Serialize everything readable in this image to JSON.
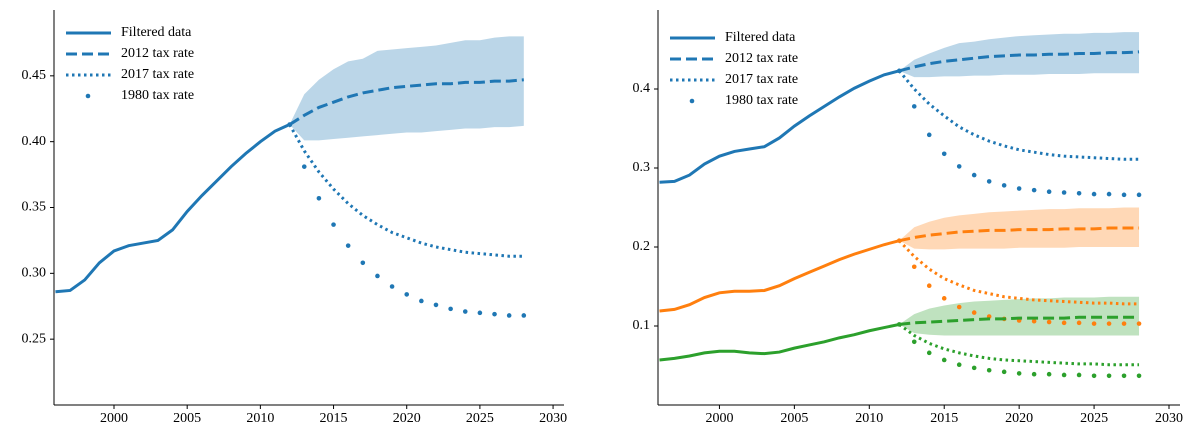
{
  "chart_data": [
    {
      "type": "line",
      "legend": "upper left",
      "x": [
        1996,
        1997,
        1998,
        1999,
        2000,
        2001,
        2002,
        2003,
        2004,
        2005,
        2006,
        2007,
        2008,
        2009,
        2010,
        2011,
        2012,
        2013,
        2014,
        2015,
        2016,
        2017,
        2018,
        2019,
        2020,
        2021,
        2022,
        2023,
        2024,
        2025,
        2026,
        2027,
        2028
      ],
      "xlim": [
        1995.9,
        2030.2
      ],
      "xticks": [
        2000,
        2005,
        2010,
        2015,
        2020,
        2025,
        2030
      ],
      "ylim": [
        0.2,
        0.5
      ],
      "yticks": [
        {
          "value": 0.25,
          "label": "0.25"
        },
        {
          "value": 0.3,
          "label": "0.30"
        },
        {
          "value": 0.35,
          "label": "0.35"
        },
        {
          "value": 0.4,
          "label": "0.40"
        },
        {
          "value": 0.45,
          "label": "0.45"
        }
      ],
      "bands": [
        {
          "color": "#1f77b4",
          "upper": [
            null,
            null,
            null,
            null,
            null,
            null,
            null,
            null,
            null,
            null,
            null,
            null,
            null,
            null,
            null,
            null,
            0.413,
            0.436,
            0.447,
            0.455,
            0.461,
            0.463,
            0.469,
            0.47,
            0.471,
            0.472,
            0.473,
            0.475,
            0.477,
            0.477,
            0.479,
            0.48,
            0.48
          ],
          "lower": [
            null,
            null,
            null,
            null,
            null,
            null,
            null,
            null,
            null,
            null,
            null,
            null,
            null,
            null,
            null,
            null,
            0.413,
            0.401,
            0.401,
            0.402,
            0.403,
            0.404,
            0.405,
            0.406,
            0.407,
            0.407,
            0.408,
            0.409,
            0.41,
            0.41,
            0.411,
            0.411,
            0.412
          ]
        }
      ],
      "series": [
        {
          "name": "Filtered data",
          "color": "#1f77b4",
          "style": "solid",
          "values": [
            0.286,
            0.287,
            0.295,
            0.308,
            0.317,
            0.321,
            0.323,
            0.325,
            0.333,
            0.347,
            0.359,
            0.37,
            0.381,
            0.391,
            0.4,
            0.408,
            0.413,
            null,
            null,
            null,
            null,
            null,
            null,
            null,
            null,
            null,
            null,
            null,
            null,
            null,
            null,
            null,
            null
          ]
        },
        {
          "name": "2012 tax rate",
          "color": "#1f77b4",
          "style": "dashed",
          "values": [
            null,
            null,
            null,
            null,
            null,
            null,
            null,
            null,
            null,
            null,
            null,
            null,
            null,
            null,
            null,
            null,
            0.413,
            0.42,
            0.426,
            0.43,
            0.434,
            0.437,
            0.439,
            0.441,
            0.442,
            0.443,
            0.444,
            0.444,
            0.445,
            0.445,
            0.446,
            0.446,
            0.447
          ]
        },
        {
          "name": "2017 tax rate",
          "color": "#1f77b4",
          "style": "dotted",
          "values": [
            null,
            null,
            null,
            null,
            null,
            null,
            null,
            null,
            null,
            null,
            null,
            null,
            null,
            null,
            null,
            null,
            0.413,
            0.393,
            0.377,
            0.364,
            0.353,
            0.344,
            0.337,
            0.331,
            0.327,
            0.323,
            0.32,
            0.318,
            0.316,
            0.315,
            0.314,
            0.313,
            0.313
          ]
        },
        {
          "name": "1980 tax rate",
          "color": "#1f77b4",
          "style": "points",
          "values": [
            null,
            null,
            null,
            null,
            null,
            null,
            null,
            null,
            null,
            null,
            null,
            null,
            null,
            null,
            null,
            null,
            0.413,
            0.381,
            0.357,
            0.337,
            0.321,
            0.308,
            0.298,
            0.29,
            0.284,
            0.279,
            0.276,
            0.273,
            0.271,
            0.27,
            0.269,
            0.268,
            0.268
          ]
        }
      ]
    },
    {
      "type": "line",
      "legend": "upper left",
      "x": [
        1996,
        1997,
        1998,
        1999,
        2000,
        2001,
        2002,
        2003,
        2004,
        2005,
        2006,
        2007,
        2008,
        2009,
        2010,
        2011,
        2012,
        2013,
        2014,
        2015,
        2016,
        2017,
        2018,
        2019,
        2020,
        2021,
        2022,
        2023,
        2024,
        2025,
        2026,
        2027,
        2028
      ],
      "xlim": [
        1995.9,
        2030.2
      ],
      "xticks": [
        2000,
        2005,
        2010,
        2015,
        2020,
        2025,
        2030
      ],
      "ylim": [
        0,
        0.5
      ],
      "yticks": [
        0.1,
        0.2,
        0.3,
        0.4
      ],
      "bands": [
        {
          "color": "#1f77b4",
          "upper": [
            null,
            null,
            null,
            null,
            null,
            null,
            null,
            null,
            null,
            null,
            null,
            null,
            null,
            null,
            null,
            null,
            0.423,
            0.437,
            0.445,
            0.452,
            0.458,
            0.46,
            0.463,
            0.465,
            0.467,
            0.468,
            0.469,
            0.47,
            0.47,
            0.471,
            0.471,
            0.472,
            0.472
          ],
          "lower": [
            null,
            null,
            null,
            null,
            null,
            null,
            null,
            null,
            null,
            null,
            null,
            null,
            null,
            null,
            null,
            null,
            0.423,
            0.415,
            0.415,
            0.416,
            0.416,
            0.417,
            0.417,
            0.418,
            0.418,
            0.418,
            0.419,
            0.419,
            0.419,
            0.42,
            0.42,
            0.42,
            0.42
          ]
        },
        {
          "color": "#ff7f0e",
          "upper": [
            null,
            null,
            null,
            null,
            null,
            null,
            null,
            null,
            null,
            null,
            null,
            null,
            null,
            null,
            null,
            null,
            0.208,
            0.225,
            0.232,
            0.237,
            0.24,
            0.242,
            0.244,
            0.245,
            0.246,
            0.247,
            0.248,
            0.248,
            0.249,
            0.249,
            0.249,
            0.25,
            0.25
          ],
          "lower": [
            null,
            null,
            null,
            null,
            null,
            null,
            null,
            null,
            null,
            null,
            null,
            null,
            null,
            null,
            null,
            null,
            0.208,
            0.198,
            0.197,
            0.197,
            0.198,
            0.198,
            0.198,
            0.198,
            0.199,
            0.199,
            0.199,
            0.199,
            0.2,
            0.2,
            0.2,
            0.2,
            0.2
          ]
        },
        {
          "color": "#2ca02c",
          "upper": [
            null,
            null,
            null,
            null,
            null,
            null,
            null,
            null,
            null,
            null,
            null,
            null,
            null,
            null,
            null,
            null,
            0.102,
            0.115,
            0.122,
            0.126,
            0.129,
            0.131,
            0.132,
            0.133,
            0.134,
            0.135,
            0.135,
            0.136,
            0.136,
            0.136,
            0.137,
            0.137,
            0.137
          ],
          "lower": [
            null,
            null,
            null,
            null,
            null,
            null,
            null,
            null,
            null,
            null,
            null,
            null,
            null,
            null,
            null,
            null,
            0.102,
            0.091,
            0.089,
            0.088,
            0.088,
            0.088,
            0.088,
            0.088,
            0.088,
            0.088,
            0.088,
            0.088,
            0.088,
            0.088,
            0.088,
            0.088,
            0.088
          ]
        }
      ],
      "series": [
        {
          "name": "Filtered data",
          "color": "#1f77b4",
          "style": "solid",
          "values": [
            0.282,
            0.283,
            0.291,
            0.305,
            0.315,
            0.321,
            0.324,
            0.327,
            0.338,
            0.353,
            0.366,
            0.378,
            0.39,
            0.401,
            0.41,
            0.418,
            0.423,
            null,
            null,
            null,
            null,
            null,
            null,
            null,
            null,
            null,
            null,
            null,
            null,
            null,
            null,
            null,
            null
          ]
        },
        {
          "name": "2012 tax rate",
          "color": "#1f77b4",
          "style": "dashed",
          "values": [
            null,
            null,
            null,
            null,
            null,
            null,
            null,
            null,
            null,
            null,
            null,
            null,
            null,
            null,
            null,
            null,
            0.423,
            0.428,
            0.432,
            0.435,
            0.437,
            0.439,
            0.441,
            0.442,
            0.443,
            0.443,
            0.444,
            0.444,
            0.445,
            0.445,
            0.446,
            0.446,
            0.447
          ]
        },
        {
          "name": "2017 tax rate",
          "color": "#1f77b4",
          "style": "dotted",
          "values": [
            null,
            null,
            null,
            null,
            null,
            null,
            null,
            null,
            null,
            null,
            null,
            null,
            null,
            null,
            null,
            null,
            0.423,
            0.4,
            0.381,
            0.366,
            0.352,
            0.342,
            0.334,
            0.328,
            0.323,
            0.32,
            0.317,
            0.315,
            0.314,
            0.313,
            0.312,
            0.311,
            0.311
          ]
        },
        {
          "name": "1980 tax rate",
          "color": "#1f77b4",
          "style": "points",
          "values": [
            null,
            null,
            null,
            null,
            null,
            null,
            null,
            null,
            null,
            null,
            null,
            null,
            null,
            null,
            null,
            null,
            0.423,
            0.378,
            0.342,
            0.318,
            0.302,
            0.291,
            0.283,
            0.278,
            0.274,
            0.272,
            0.27,
            0.269,
            0.268,
            0.267,
            0.267,
            0.266,
            0.266
          ]
        },
        {
          "color": "#ff7f0e",
          "style": "solid",
          "values": [
            0.119,
            0.121,
            0.127,
            0.136,
            0.142,
            0.144,
            0.144,
            0.145,
            0.151,
            0.16,
            0.168,
            0.176,
            0.184,
            0.191,
            0.197,
            0.203,
            0.208,
            null,
            null,
            null,
            null,
            null,
            null,
            null,
            null,
            null,
            null,
            null,
            null,
            null,
            null,
            null,
            null
          ]
        },
        {
          "color": "#ff7f0e",
          "style": "dashed",
          "values": [
            null,
            null,
            null,
            null,
            null,
            null,
            null,
            null,
            null,
            null,
            null,
            null,
            null,
            null,
            null,
            null,
            0.208,
            0.212,
            0.215,
            0.217,
            0.219,
            0.22,
            0.221,
            0.221,
            0.222,
            0.222,
            0.222,
            0.223,
            0.223,
            0.223,
            0.224,
            0.224,
            0.224
          ]
        },
        {
          "color": "#ff7f0e",
          "style": "dotted",
          "values": [
            null,
            null,
            null,
            null,
            null,
            null,
            null,
            null,
            null,
            null,
            null,
            null,
            null,
            null,
            null,
            null,
            0.208,
            0.188,
            0.172,
            0.16,
            0.152,
            0.145,
            0.141,
            0.137,
            0.135,
            0.133,
            0.132,
            0.131,
            0.13,
            0.129,
            0.129,
            0.128,
            0.128
          ]
        },
        {
          "color": "#ff7f0e",
          "style": "points",
          "values": [
            null,
            null,
            null,
            null,
            null,
            null,
            null,
            null,
            null,
            null,
            null,
            null,
            null,
            null,
            null,
            null,
            0.208,
            0.175,
            0.151,
            0.135,
            0.124,
            0.117,
            0.112,
            0.109,
            0.107,
            0.106,
            0.105,
            0.104,
            0.104,
            0.103,
            0.103,
            0.103,
            0.103
          ]
        },
        {
          "color": "#2ca02c",
          "style": "solid",
          "values": [
            0.057,
            0.059,
            0.062,
            0.066,
            0.068,
            0.068,
            0.066,
            0.065,
            0.067,
            0.072,
            0.076,
            0.08,
            0.085,
            0.089,
            0.094,
            0.098,
            0.102,
            null,
            null,
            null,
            null,
            null,
            null,
            null,
            null,
            null,
            null,
            null,
            null,
            null,
            null,
            null,
            null
          ]
        },
        {
          "color": "#2ca02c",
          "style": "dashed",
          "values": [
            null,
            null,
            null,
            null,
            null,
            null,
            null,
            null,
            null,
            null,
            null,
            null,
            null,
            null,
            null,
            null,
            0.102,
            0.104,
            0.105,
            0.106,
            0.107,
            0.108,
            0.109,
            0.109,
            0.11,
            0.11,
            0.11,
            0.11,
            0.111,
            0.111,
            0.111,
            0.111,
            0.111
          ]
        },
        {
          "color": "#2ca02c",
          "style": "dotted",
          "values": [
            null,
            null,
            null,
            null,
            null,
            null,
            null,
            null,
            null,
            null,
            null,
            null,
            null,
            null,
            null,
            null,
            0.102,
            0.088,
            0.078,
            0.071,
            0.066,
            0.062,
            0.059,
            0.057,
            0.056,
            0.055,
            0.054,
            0.053,
            0.052,
            0.052,
            0.051,
            0.051,
            0.051
          ]
        },
        {
          "color": "#2ca02c",
          "style": "points",
          "values": [
            null,
            null,
            null,
            null,
            null,
            null,
            null,
            null,
            null,
            null,
            null,
            null,
            null,
            null,
            null,
            null,
            0.102,
            0.08,
            0.066,
            0.057,
            0.051,
            0.047,
            0.044,
            0.042,
            0.04,
            0.039,
            0.039,
            0.038,
            0.038,
            0.037,
            0.037,
            0.037,
            0.037
          ]
        }
      ]
    }
  ]
}
